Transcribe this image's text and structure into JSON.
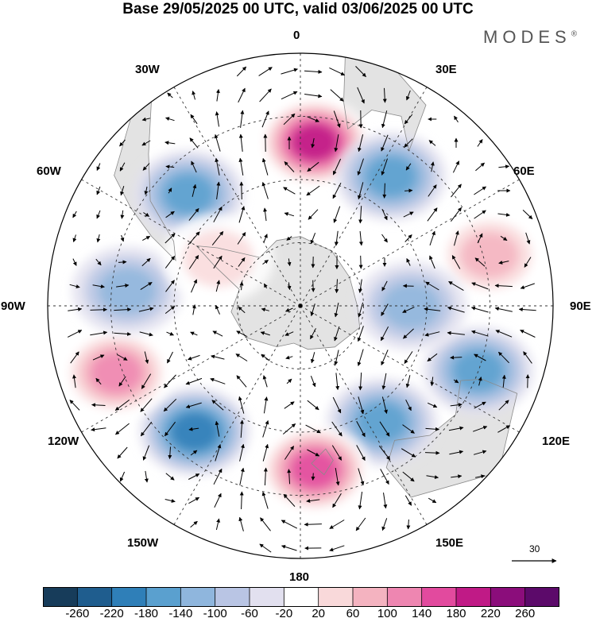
{
  "title": "Base 29/05/2025 00 UTC, valid 03/06/2025 00 UTC",
  "brand": {
    "text": "MODES",
    "mark": "®"
  },
  "longitude_labels": [
    "0",
    "30E",
    "60E",
    "90E",
    "120E",
    "150E",
    "180",
    "150W",
    "120W",
    "90W",
    "60W",
    "30W"
  ],
  "reference_vector": {
    "value": "30"
  },
  "colorbar": {
    "ticks": [
      "-260",
      "-220",
      "-180",
      "-140",
      "-100",
      "-60",
      "-20",
      "20",
      "60",
      "100",
      "140",
      "180",
      "220",
      "260"
    ],
    "colors": [
      "#173c5a",
      "#1f5d8e",
      "#2f7fb8",
      "#5aa0cf",
      "#8fb6dd",
      "#b9c5e4",
      "#e2e0ef",
      "#ffffff",
      "#f9d9da",
      "#f4b3c0",
      "#ee86b1",
      "#e24a9e",
      "#c01a86",
      "#8b0d7b",
      "#5c0a6a"
    ]
  },
  "anomaly_centers": [
    {
      "lon": 5,
      "rdeg": 52,
      "sign": "positive",
      "level": 200
    },
    {
      "lon": 35,
      "rdeg": 50,
      "sign": "negative",
      "level": -140
    },
    {
      "lon": -45,
      "rdeg": 50,
      "sign": "negative",
      "level": -120
    },
    {
      "lon": 75,
      "rdeg": 62,
      "sign": "positive",
      "level": 110
    },
    {
      "lon": 110,
      "rdeg": 60,
      "sign": "negative",
      "level": -150
    },
    {
      "lon": 145,
      "rdeg": 45,
      "sign": "negative",
      "level": -140
    },
    {
      "lon": 175,
      "rdeg": 52,
      "sign": "positive",
      "level": 190
    },
    {
      "lon": -140,
      "rdeg": 52,
      "sign": "negative",
      "level": -160
    },
    {
      "lon": -110,
      "rdeg": 62,
      "sign": "positive",
      "level": 150
    },
    {
      "lon": -85,
      "rdeg": 55,
      "sign": "negative",
      "level": -90
    },
    {
      "lon": 90,
      "rdeg": 35,
      "sign": "negative",
      "level": -80
    },
    {
      "lon": -60,
      "rdeg": 30,
      "sign": "positive",
      "level": 60
    }
  ],
  "map_style": {
    "land_color": "#e3e3e3",
    "coast_color": "#8a8a8a",
    "grid_color": "#333333",
    "arrow_color": "#000000"
  }
}
